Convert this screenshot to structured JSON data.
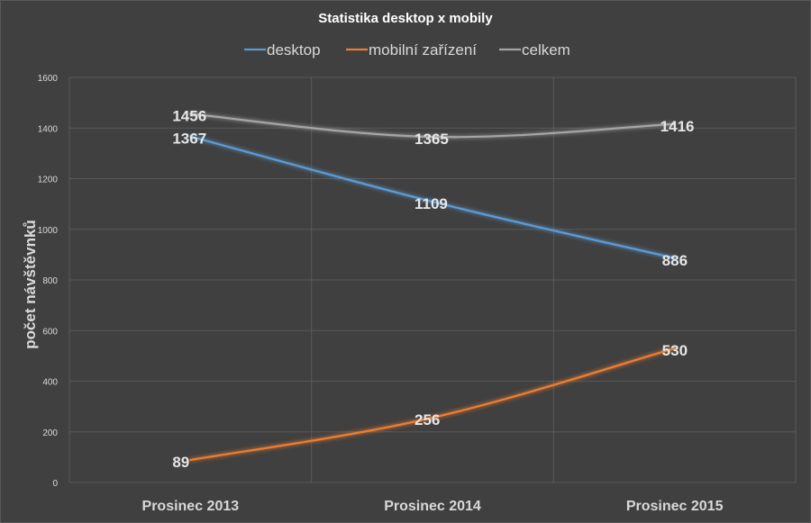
{
  "chart_data": {
    "type": "line",
    "title": "Statistika desktop x mobily",
    "xlabel": "",
    "ylabel": "počet návštěvnků",
    "categories": [
      "Prosinec 2013",
      "Prosinec 2014",
      "Prosinec 2015"
    ],
    "yticks": [
      "0",
      "200",
      "400",
      "600",
      "800",
      "1000",
      "1200",
      "1400",
      "1600"
    ],
    "ylim": [
      0,
      1600
    ],
    "grid": true,
    "legend_position": "top",
    "series": [
      {
        "name": "desktop",
        "values": [
          1367,
          1109,
          886
        ],
        "labels": [
          "1367",
          "1109",
          "886"
        ],
        "color": "#5b9bd5"
      },
      {
        "name": "mobilní zařízení",
        "values": [
          89,
          256,
          530
        ],
        "labels": [
          "89",
          "256",
          "530"
        ],
        "color": "#ed7d31"
      },
      {
        "name": "celkem",
        "values": [
          1456,
          1365,
          1416
        ],
        "labels": [
          "1456",
          "1365",
          "1416"
        ],
        "color": "#a5a5a5"
      }
    ]
  }
}
